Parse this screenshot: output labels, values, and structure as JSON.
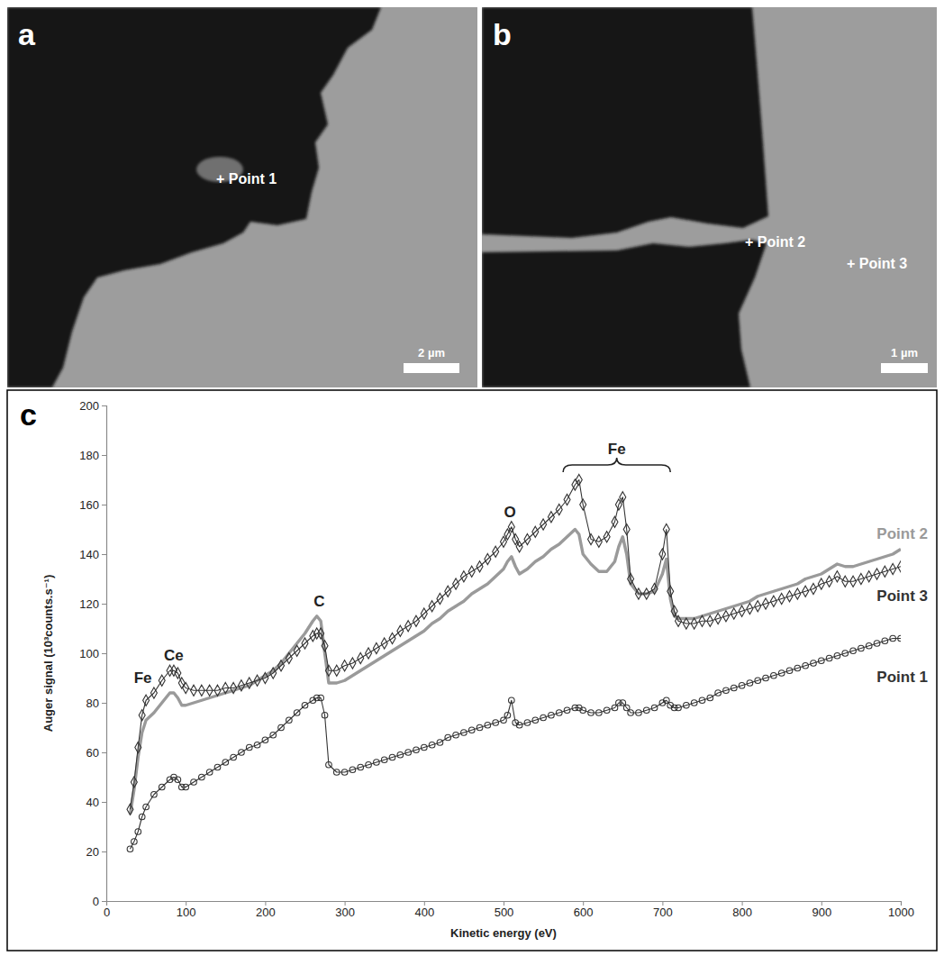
{
  "images": [
    {
      "letter": "a",
      "labels": [
        "+ Point 1"
      ],
      "scale_bar": "2 µm"
    },
    {
      "letter": "b",
      "labels": [
        "+ Point 2",
        "+ Point 3"
      ],
      "scale_bar": "1 µm"
    }
  ],
  "chart_data": {
    "type": "line",
    "title": "c",
    "x_label": "Kinetic energy (eV)",
    "y_label": "Auger signal (10³counts.s⁻¹)",
    "xlim": [
      0,
      1000
    ],
    "ylim": [
      0,
      200
    ],
    "xticks": [
      0,
      100,
      200,
      300,
      400,
      500,
      600,
      700,
      800,
      900,
      1000
    ],
    "yticks": [
      0,
      20,
      40,
      60,
      80,
      100,
      120,
      140,
      160,
      180,
      200
    ],
    "grid": false,
    "x": [
      30,
      35,
      40,
      45,
      50,
      60,
      70,
      80,
      85,
      90,
      95,
      100,
      110,
      120,
      130,
      140,
      150,
      160,
      170,
      180,
      190,
      200,
      210,
      220,
      230,
      240,
      250,
      260,
      265,
      270,
      275,
      280,
      290,
      300,
      310,
      320,
      330,
      340,
      350,
      360,
      370,
      380,
      390,
      400,
      410,
      420,
      430,
      440,
      450,
      460,
      470,
      480,
      490,
      500,
      505,
      510,
      515,
      520,
      530,
      540,
      550,
      560,
      570,
      580,
      590,
      595,
      600,
      610,
      620,
      630,
      640,
      645,
      650,
      655,
      660,
      670,
      680,
      690,
      700,
      705,
      710,
      715,
      720,
      730,
      740,
      750,
      760,
      770,
      780,
      790,
      800,
      810,
      820,
      830,
      840,
      850,
      860,
      870,
      880,
      890,
      900,
      910,
      920,
      930,
      940,
      950,
      960,
      970,
      980,
      990,
      1000
    ],
    "series": [
      {
        "name": "Point 2",
        "color": "#9a9a9a",
        "marker": "none",
        "line_style": "solid",
        "values": [
          35,
          45,
          58,
          68,
          73,
          76,
          80,
          84,
          84,
          82,
          79,
          79,
          80,
          81,
          82,
          83,
          84,
          85,
          86,
          87,
          89,
          91,
          93,
          96,
          100,
          104,
          108,
          113,
          115,
          113,
          100,
          88,
          88,
          89,
          91,
          93,
          95,
          97,
          99,
          101,
          103,
          105,
          107,
          109,
          112,
          114,
          117,
          119,
          121,
          124,
          126,
          128,
          131,
          134,
          137,
          139,
          135,
          132,
          134,
          137,
          139,
          142,
          144,
          147,
          150,
          148,
          140,
          136,
          133,
          133,
          137,
          143,
          147,
          140,
          128,
          124,
          124,
          125,
          132,
          138,
          122,
          115,
          114,
          114,
          114,
          115,
          116,
          117,
          118,
          119,
          120,
          121,
          123,
          124,
          125,
          126,
          127,
          128,
          130,
          131,
          132,
          134,
          136,
          135,
          135,
          136,
          137,
          138,
          139,
          140,
          142
        ]
      },
      {
        "name": "Point 3",
        "color": "#333333",
        "marker": "diamond",
        "line_style": "solid",
        "values": [
          37,
          48,
          62,
          75,
          81,
          84,
          89,
          93,
          93,
          92,
          88,
          86,
          85,
          85,
          85,
          85,
          86,
          86,
          87,
          88,
          89,
          90,
          92,
          95,
          98,
          101,
          104,
          107,
          108,
          108,
          103,
          93,
          93,
          95,
          96,
          98,
          100,
          102,
          104,
          106,
          109,
          111,
          113,
          116,
          119,
          122,
          125,
          128,
          131,
          133,
          135,
          138,
          141,
          145,
          148,
          151,
          146,
          143,
          146,
          149,
          152,
          155,
          158,
          162,
          168,
          170,
          160,
          146,
          145,
          147,
          153,
          160,
          163,
          150,
          130,
          124,
          124,
          126,
          140,
          150,
          125,
          117,
          113,
          112,
          112,
          113,
          113,
          114,
          115,
          116,
          117,
          118,
          119,
          120,
          121,
          122,
          123,
          124,
          125,
          126,
          128,
          129,
          131,
          129,
          129,
          130,
          131,
          132,
          133,
          134,
          135
        ]
      },
      {
        "name": "Point 1",
        "color": "#333333",
        "marker": "circle",
        "line_style": "solid",
        "values": [
          21,
          24,
          28,
          34,
          38,
          43,
          46,
          49,
          50,
          49,
          46,
          46,
          48,
          50,
          52,
          54,
          56,
          58,
          60,
          62,
          63,
          65,
          67,
          70,
          73,
          76,
          79,
          81,
          82,
          82,
          75,
          55,
          52,
          52,
          53,
          54,
          55,
          56,
          57,
          58,
          59,
          60,
          61,
          62,
          63,
          64,
          66,
          67,
          68,
          69,
          70,
          71,
          72,
          73,
          75,
          81,
          72,
          71,
          72,
          73,
          74,
          75,
          76,
          77,
          78,
          78,
          77,
          76,
          76,
          77,
          78,
          80,
          80,
          78,
          76,
          76,
          77,
          78,
          80,
          81,
          79,
          78,
          78,
          79,
          80,
          81,
          82,
          84,
          85,
          86,
          87,
          88,
          89,
          90,
          91,
          92,
          93,
          94,
          95,
          96,
          97,
          98,
          99,
          100,
          101,
          102,
          103,
          104,
          105,
          106,
          106
        ]
      }
    ],
    "annotations": [
      {
        "text": "Fe",
        "x": 46,
        "y": 88
      },
      {
        "text": "Ce",
        "x": 85,
        "y": 97
      },
      {
        "text": "C",
        "x": 268,
        "y": 119
      },
      {
        "text": "O",
        "x": 508,
        "y": 155
      },
      {
        "text": "Fe",
        "x": [
          575,
          710
        ],
        "y": 176
      }
    ]
  }
}
